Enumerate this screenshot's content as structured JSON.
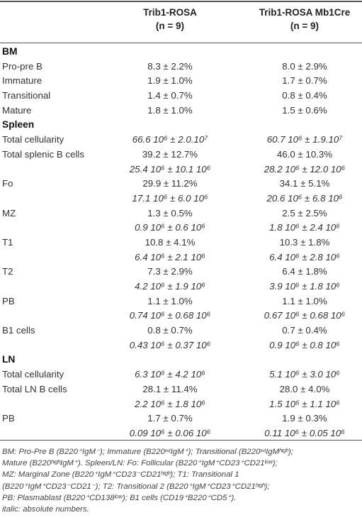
{
  "table": {
    "header": {
      "col1": {
        "title": "Trib1-ROSA",
        "n": "(n = 9)"
      },
      "col2": {
        "title": "Trib1-ROSA Mb1Cre",
        "n": "(n = 9)"
      }
    },
    "rows": [
      {
        "kind": "section",
        "label": "BM"
      },
      {
        "kind": "data",
        "label": "Pro-pre B",
        "c1": "8.3 ± 2.2%",
        "c2": "8.0 ± 2.9%"
      },
      {
        "kind": "data",
        "label": "Immature",
        "c1": "1.9 ± 1.0%",
        "c2": "1.7 ± 0.7%"
      },
      {
        "kind": "data",
        "label": "Transitional",
        "c1": "1.4 ± 0.7%",
        "c2": "0.8 ± 0.4%"
      },
      {
        "kind": "data",
        "label": "Mature",
        "c1": "1.8 ± 1.0%",
        "c2": "1.5 ± 0.6%"
      },
      {
        "kind": "section",
        "label": "Spleen"
      },
      {
        "kind": "abs",
        "label": "Total cellularity",
        "c1": "66.6 10⁶ ± 2.0.10⁷",
        "c2": "60.7 10⁶ ± 1.9.10⁷"
      },
      {
        "kind": "data",
        "label": "Total splenic B cells",
        "c1": "39.2 ± 12.7%",
        "c2": "46.0 ± 10.3%"
      },
      {
        "kind": "abs",
        "label": "",
        "c1": "25.4 10⁶ ± 10.1 10⁶",
        "c2": "28.2 10⁶ ± 12.0 10⁶"
      },
      {
        "kind": "data",
        "label": "Fo",
        "c1": "29.9 ± 11.2%",
        "c2": "34.1 ± 5.1%"
      },
      {
        "kind": "abs",
        "label": "",
        "c1": "17.1 10⁶ ± 6.0 10⁶",
        "c2": "20.6 10⁶ ± 6.8 10⁶"
      },
      {
        "kind": "data",
        "label": "MZ",
        "c1": "1.3 ± 0.5%",
        "c2": "2.5 ± 2.5%"
      },
      {
        "kind": "abs",
        "label": "",
        "c1": "0.9 10⁶ ± 0.6 10⁶",
        "c2": "1.8 10⁶ ± 2.4 10⁶"
      },
      {
        "kind": "data",
        "label": "T1",
        "c1": "10.8 ± 4.1%",
        "c2": "10.3 ± 1.8%"
      },
      {
        "kind": "abs",
        "label": "",
        "c1": "6.4 10⁶ ± 2.1 10⁶",
        "c2": "6.4 10⁶ ± 2.8 10⁶"
      },
      {
        "kind": "data",
        "label": "T2",
        "c1": "7.3 ± 2.9%",
        "c2": "6.4 ± 1.8%"
      },
      {
        "kind": "abs",
        "label": "",
        "c1": "4.2 10⁶ ± 1.9 10⁶",
        "c2": "3.9 10⁶ ± 1.8 10⁶"
      },
      {
        "kind": "data",
        "label": "PB",
        "c1": "1.1 ± 1.0%",
        "c2": "1.1 ± 1.0%"
      },
      {
        "kind": "abs",
        "label": "",
        "c1": "0.74 10⁶ ± 0.68 10⁶",
        "c2": "0.67 10⁶ ± 0.68 10⁶"
      },
      {
        "kind": "data",
        "label": "B1 cells",
        "c1": "0.8 ± 0.7%",
        "c2": "0.7 ± 0.4%"
      },
      {
        "kind": "abs",
        "label": "",
        "c1": "0.43 10⁶ ± 0.37 10⁶",
        "c2": "0.9 10⁶ ± 0.8 10⁶"
      },
      {
        "kind": "section",
        "label": "LN"
      },
      {
        "kind": "abs",
        "label": "Total cellularity",
        "c1": "6.3 10⁶ ± 4.2 10⁶",
        "c2": "5.1 10⁶ ± 3.0 10⁶"
      },
      {
        "kind": "data",
        "label": "Total LN B cells",
        "c1": "28.1 ± 11.4%",
        "c2": "28.0 ± 4.0%"
      },
      {
        "kind": "abs",
        "label": "",
        "c1": "2.2 10⁶ ± 1.8 10⁶",
        "c2": "1.5 10⁶ ± 1.1 10⁶"
      },
      {
        "kind": "data",
        "label": "PB",
        "c1": "1.7 ± 0.7%",
        "c2": "1.9 ± 0.3%"
      },
      {
        "kind": "abs",
        "label": "",
        "c1": "0.09 10⁶ ± 0.06 10⁶",
        "c2": "0.11 10⁶ ± 0.05 10⁶"
      }
    ]
  },
  "footnote": {
    "lines": [
      "BM: Pro-Pre B (B220⁺IgM⁻); Immature (B220ᶦⁿᵗIgM⁺); Transitional (B220ᶦⁿᵗIgMʰᶦᵍʰ);",
      "Mature (B220ʰᶦᵍʰIgM⁺). Spleen/LN: Fo: Follicular (B220⁺IgM⁺CD23⁺CD21ˡᵒʷ);",
      "MZ: Marginal Zone (B220⁺IgM⁺CD23⁻CD21ʰᶦᵍʰ); T1: Transitional 1",
      "(B220⁺IgM⁺CD23⁻CD21⁻); T2: Transitional 2 (B220⁺IgM⁺CD23⁺CD21ʰᶦᵍʰ);",
      "PB: Plasmablast (B220⁺CD138ˡᵒʷ); B1 cells (CD19⁺B220⁺CD5⁺).",
      "italic: absolute numbers."
    ]
  }
}
